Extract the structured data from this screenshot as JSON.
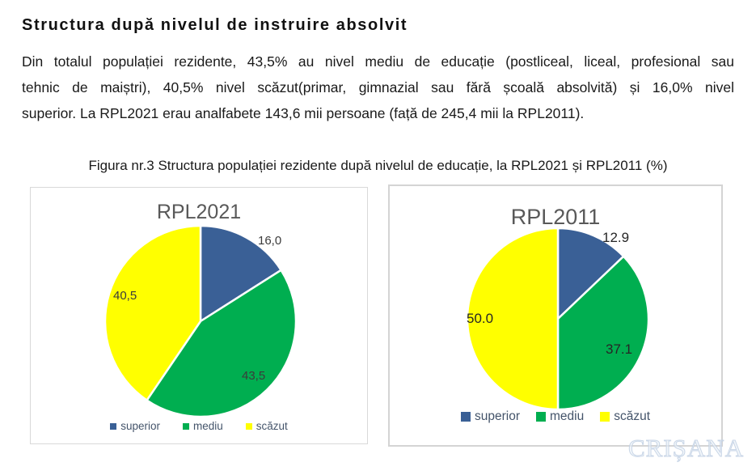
{
  "page": {
    "heading": "Structura după nivelul de instruire absolvit",
    "paragraph_lines": [
      "Din totalul populației rezidente, 43,5% au nivel mediu de educație (postliceal, liceal, profesional sau",
      "tehnic de maiștri), 40,5% nivel scăzut(primar, gimnazial sau fără școală absolvită) și 16,0% nivel",
      "superior. La RPL2021 erau analfabete 143,6 mii persoane (față de 245,4 mii la RPL2011)."
    ],
    "figure_caption": "Figura nr.3 Structura populației rezidente după nivelul de educație, la RPL2021 și RPL2011 (%)",
    "watermark": "CRIȘANA"
  },
  "colors": {
    "superior_blue": "#3A6096",
    "mediu_green": "#00AE50",
    "scazut_yellow": "#FFFF00",
    "chart_title_gray": "#595959",
    "legend_text": "#44546A",
    "panel_border": "#D9D9D9"
  },
  "chart_data": [
    {
      "type": "pie",
      "title": "RPL2021",
      "start_angle_deg": 0,
      "direction": "clockwise",
      "slices": [
        {
          "name": "superior",
          "value": 16.0,
          "label": "16,0",
          "color": "#3A6096"
        },
        {
          "name": "mediu",
          "value": 43.5,
          "label": "43,5",
          "color": "#00AE50"
        },
        {
          "name": "scăzut",
          "value": 40.5,
          "label": "40,5",
          "color": "#FFFF00"
        }
      ],
      "legend": [
        "superior",
        "mediu",
        "scăzut"
      ],
      "legend_position": "bottom"
    },
    {
      "type": "pie",
      "title": "RPL2011",
      "start_angle_deg": 0,
      "direction": "clockwise",
      "slices": [
        {
          "name": "superior",
          "value": 12.9,
          "label": "12.9",
          "color": "#3A6096"
        },
        {
          "name": "mediu",
          "value": 37.1,
          "label": "37.1",
          "color": "#00AE50"
        },
        {
          "name": "scăzut",
          "value": 50.0,
          "label": "50.0",
          "color": "#FFFF00"
        }
      ],
      "legend": [
        "superior",
        "mediu",
        "scăzut"
      ],
      "legend_position": "bottom"
    }
  ]
}
